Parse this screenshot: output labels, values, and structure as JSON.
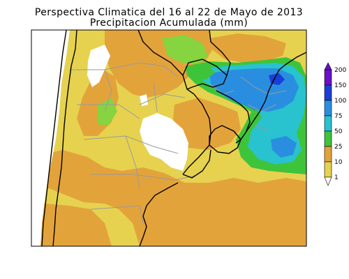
{
  "title": {
    "line1": "Perspectiva Climatica del 16 al 22 de Mayo de 2013",
    "line2": "Precipitacion Acumulada (mm)"
  },
  "legend": {
    "entries": [
      {
        "label": "200",
        "color": "#6a10c8"
      },
      {
        "label": "150",
        "color": "#1a3fd8"
      },
      {
        "label": "100",
        "color": "#2a8ee0"
      },
      {
        "label": "75",
        "color": "#29c2cf"
      },
      {
        "label": "50",
        "color": "#3ec43a"
      },
      {
        "label": "25",
        "color": "#e3a33b"
      },
      {
        "label": "10",
        "color": "#e6d24f"
      },
      {
        "label": "1",
        "color": "#ffffff"
      }
    ]
  },
  "map": {
    "layers": {
      "background": "#e6d24f",
      "orange": "#e3a33b",
      "green": "#3ec43a",
      "light_green": "#86d43f",
      "cyan": "#29c2cf",
      "blue": "#2a8ee0",
      "dark_blue": "#1a3fd8",
      "white": "#ffffff",
      "borders": "#000000",
      "provinces": "#9a9a9a"
    }
  }
}
